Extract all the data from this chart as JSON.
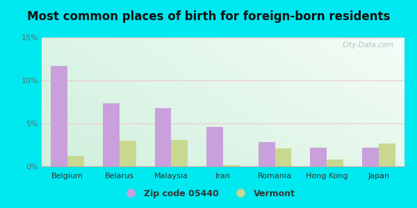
{
  "title": "Most common places of birth for foreign-born residents",
  "categories": [
    "Belgium",
    "Belarus",
    "Malaysia",
    "Iran",
    "Romania",
    "Hong Kong",
    "Japan"
  ],
  "zip_values": [
    11.7,
    7.3,
    6.8,
    4.6,
    2.8,
    2.2,
    2.2
  ],
  "vt_values": [
    1.2,
    3.0,
    3.1,
    0.2,
    2.1,
    0.8,
    2.7
  ],
  "zip_color": "#c9a0dc",
  "vt_color": "#c8d890",
  "ylim": [
    0,
    15
  ],
  "yticks": [
    0,
    5,
    10,
    15
  ],
  "ytick_labels": [
    "0%",
    "5%",
    "10%",
    "15%"
  ],
  "legend_zip": "Zip code 05440",
  "legend_vt": "Vermont",
  "bg_outer": "#00e8f0",
  "watermark": "City-Data.com",
  "bar_width": 0.32,
  "title_fontsize": 12,
  "tick_fontsize": 8,
  "legend_fontsize": 9,
  "bg_gradient_topleft": "#c8ead8",
  "bg_gradient_topright": "#e8f8f0",
  "bg_gradient_bottom": "#d8f0e0"
}
